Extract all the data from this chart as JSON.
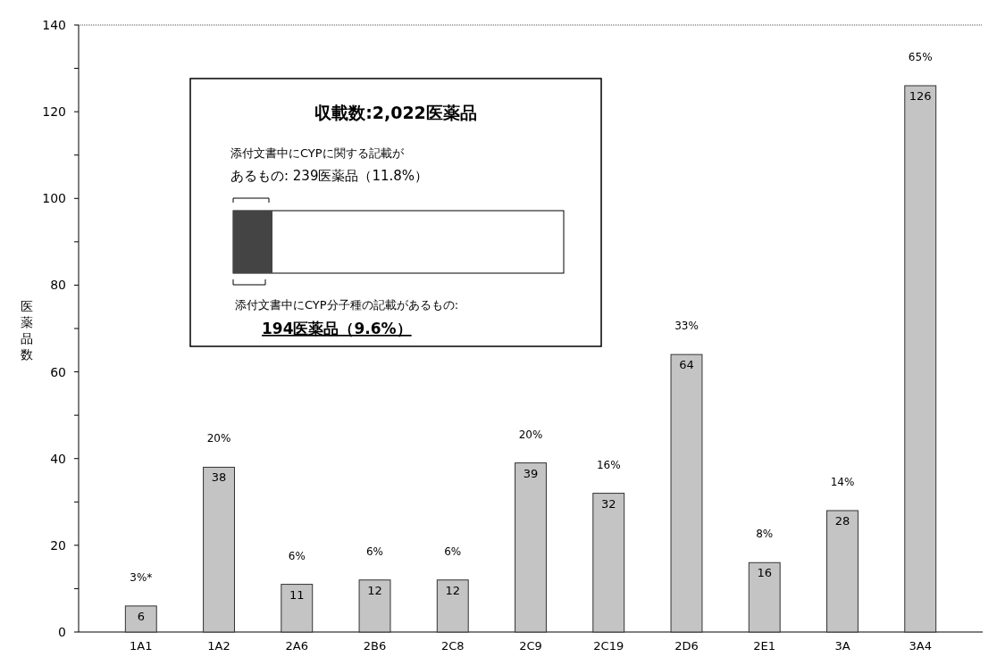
{
  "chart_data": {
    "type": "bar",
    "ylabel": "医薬品数",
    "categories": [
      "1A1",
      "1A2",
      "2A6",
      "2B6",
      "2C8",
      "2C9",
      "2C19",
      "2D6",
      "2E1",
      "3A",
      "3A4"
    ],
    "values": [
      6,
      38,
      11,
      12,
      12,
      39,
      32,
      64,
      16,
      28,
      126
    ],
    "color": "#c4c4c4",
    "data_labels": true,
    "ylim": [
      0,
      140
    ],
    "yticks": [
      0,
      {
        "value": 10,
        "label": null
      },
      20,
      {
        "value": 30,
        "label": null
      },
      40,
      {
        "value": 50,
        "label": null
      },
      60,
      {
        "value": 70,
        "label": null
      },
      80,
      {
        "value": 90,
        "label": null
      },
      100,
      {
        "value": 110,
        "label": null
      },
      120,
      {
        "value": 130,
        "label": null
      },
      140
    ],
    "annotations": [
      {
        "text": "3%*",
        "x": "1A1",
        "y": 6
      },
      {
        "text": "20%",
        "x": "1A2",
        "y": 38
      },
      {
        "text": "6%",
        "x": "2A6",
        "y": 11
      },
      {
        "text": "6%",
        "x": "2B6",
        "y": 12
      },
      {
        "text": "6%",
        "x": "2C8",
        "y": 12
      },
      {
        "text": "20%",
        "x": "2C9",
        "y": 39
      },
      {
        "text": "16%",
        "x": "2C19",
        "y": 32
      },
      {
        "text": "33%",
        "x": "2D6",
        "y": 64
      },
      {
        "text": "8%",
        "x": "2E1",
        "y": 16
      },
      {
        "text": "14%",
        "x": "3A",
        "y": 28
      },
      {
        "text": "65%",
        "x": "3A4",
        "y": 126
      },
      "収載数:2,022医薬品",
      "添付文書中にCYPに関する記載が",
      "あるもの:  239医薬品（11.8%）",
      "添付文書中にCYP分子種の記載があるもの:",
      "194医薬品（9.6%）"
    ]
  }
}
